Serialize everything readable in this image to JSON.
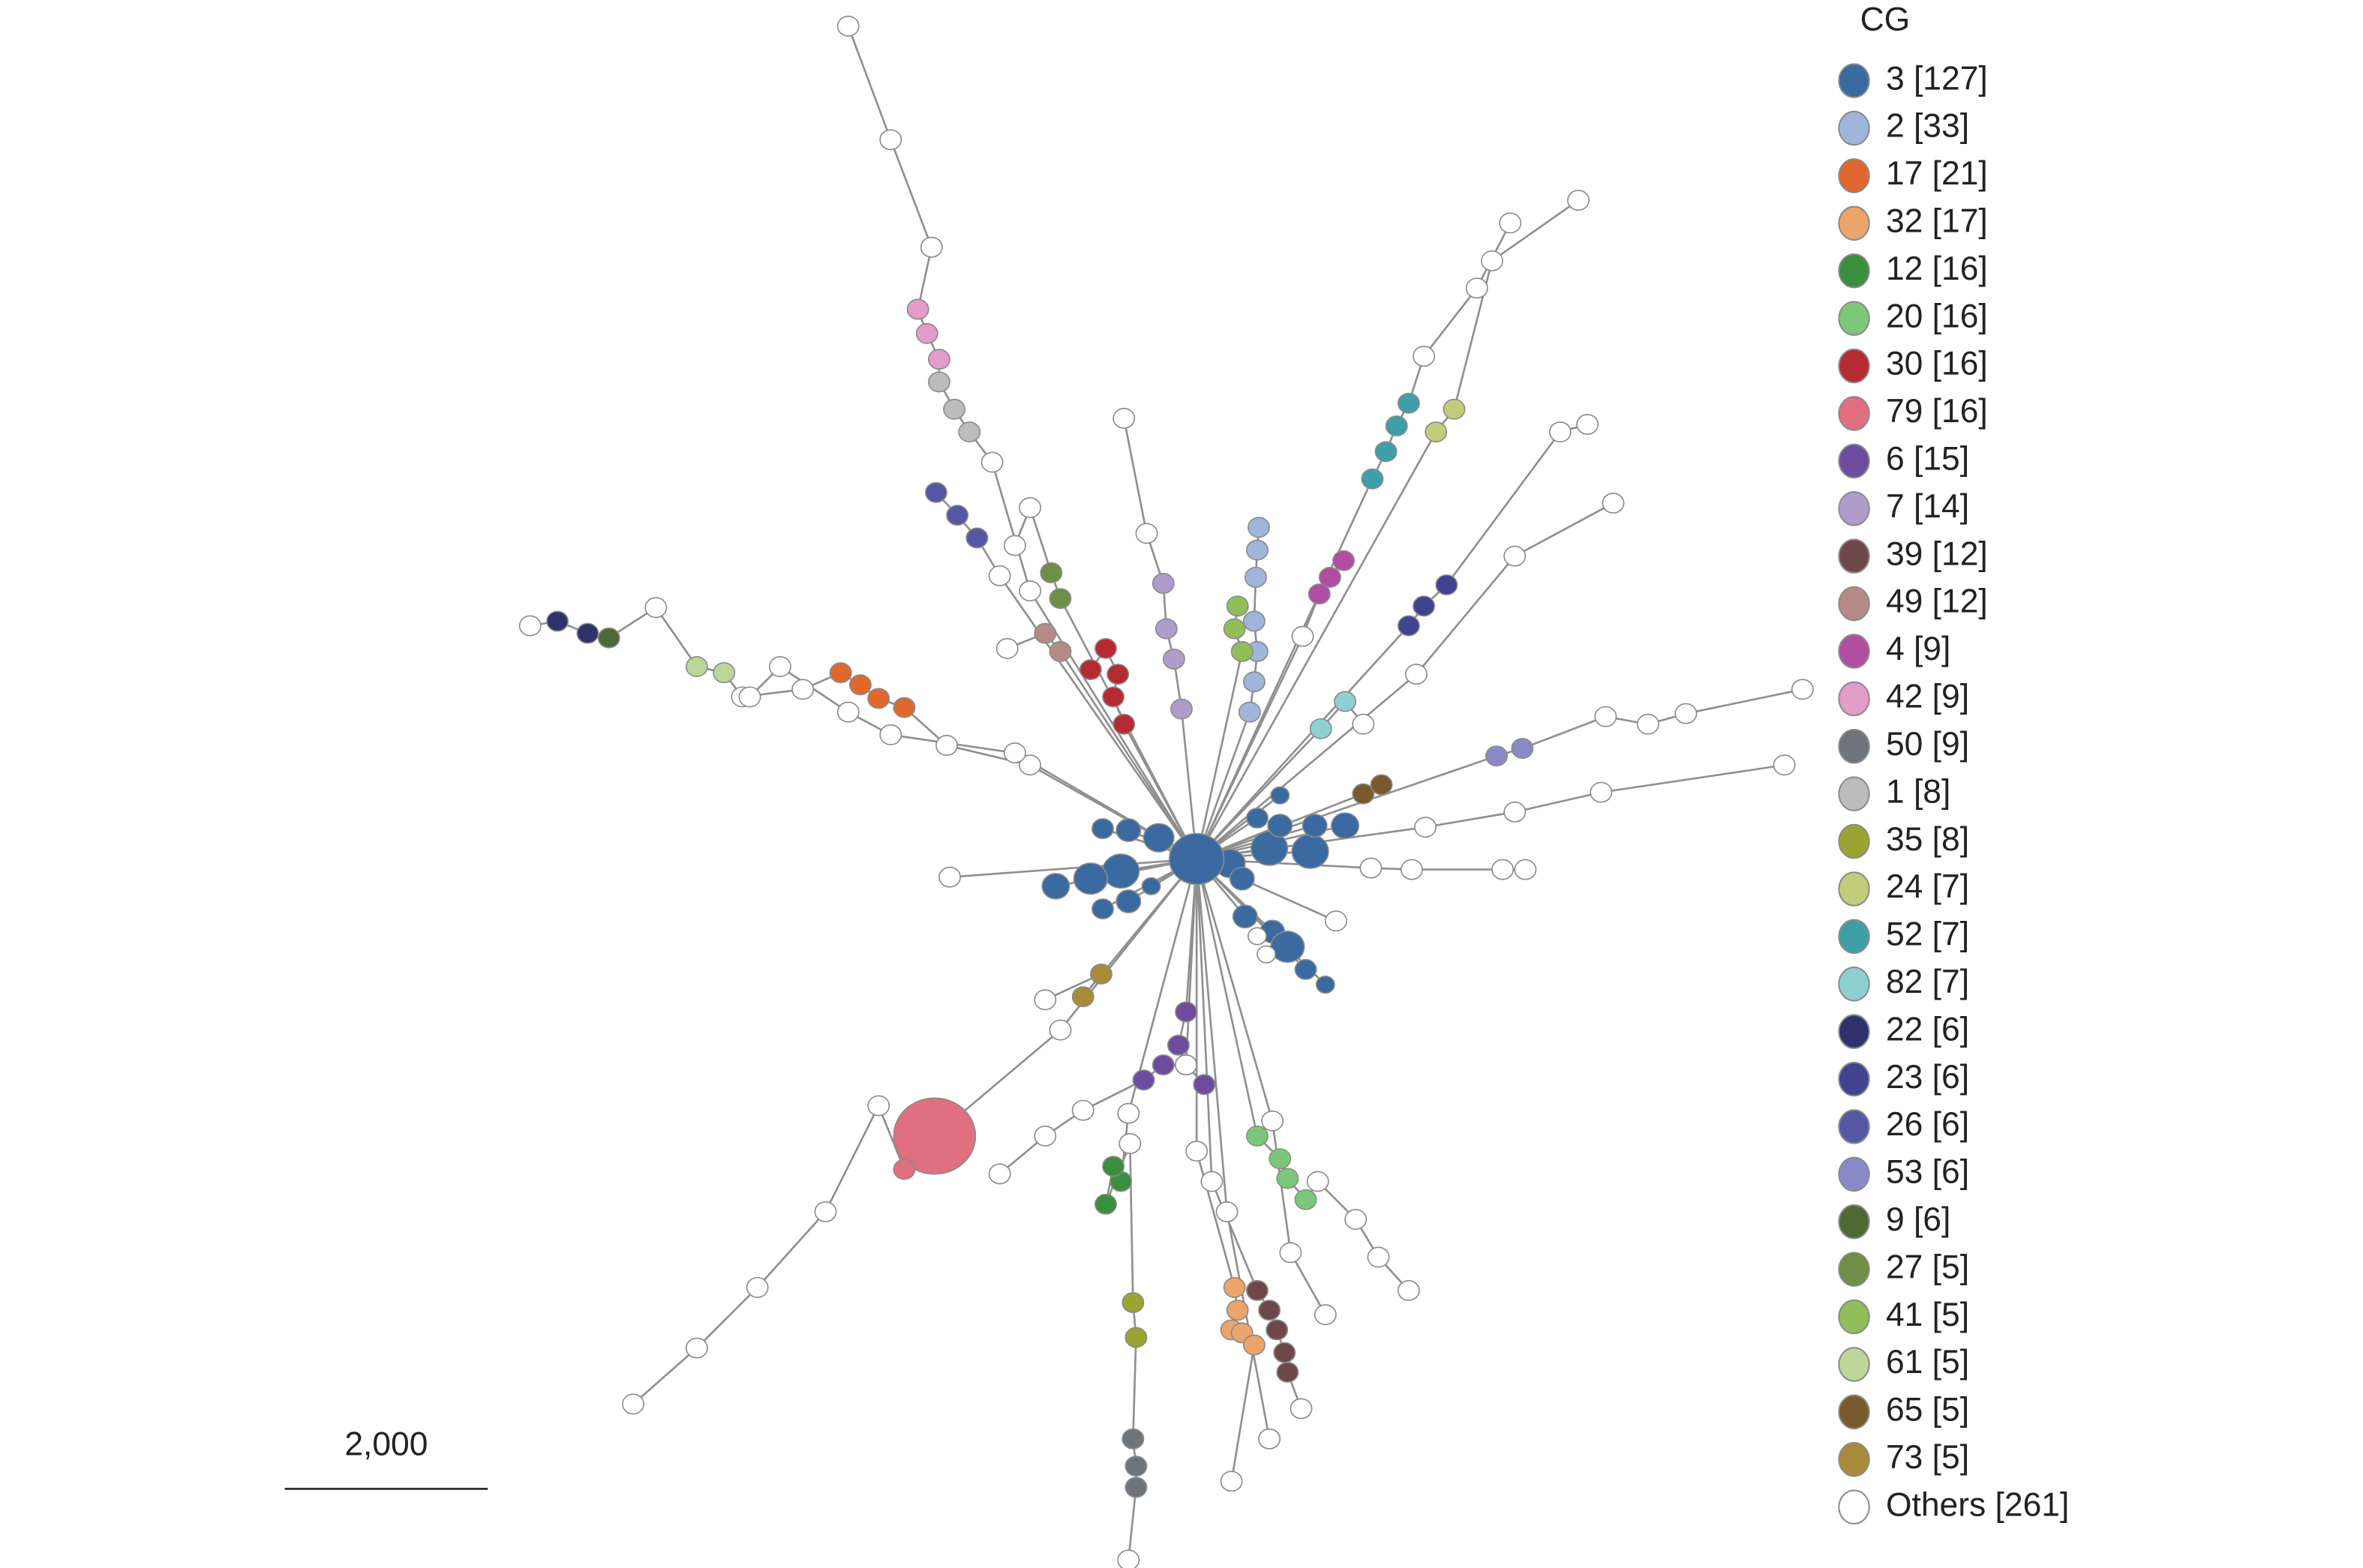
{
  "legend": {
    "title": "CG",
    "items": [
      {
        "label": "3 [127]",
        "color": "#3a6aa0"
      },
      {
        "label": "2 [33]",
        "color": "#9fb6da"
      },
      {
        "label": "17 [21]",
        "color": "#e0682c"
      },
      {
        "label": "32 [17]",
        "color": "#eca46a"
      },
      {
        "label": "12 [16]",
        "color": "#3a8f3e"
      },
      {
        "label": "20 [16]",
        "color": "#7cc87a"
      },
      {
        "label": "30 [16]",
        "color": "#b62b31"
      },
      {
        "label": "79 [16]",
        "color": "#e06f7f"
      },
      {
        "label": "6 [15]",
        "color": "#6d4c9f"
      },
      {
        "label": "7 [14]",
        "color": "#b09ccb"
      },
      {
        "label": "39 [12]",
        "color": "#6e4848"
      },
      {
        "label": "49 [12]",
        "color": "#b68a86"
      },
      {
        "label": "4 [9]",
        "color": "#b24ea2"
      },
      {
        "label": "42 [9]",
        "color": "#e49cc9"
      },
      {
        "label": "50 [9]",
        "color": "#6f747b"
      },
      {
        "label": "1 [8]",
        "color": "#bcbcbc"
      },
      {
        "label": "35 [8]",
        "color": "#99a530"
      },
      {
        "label": "24 [7]",
        "color": "#c3cc7a"
      },
      {
        "label": "52 [7]",
        "color": "#3f9fa8"
      },
      {
        "label": "82 [7]",
        "color": "#8fcfd0"
      },
      {
        "label": "22 [6]",
        "color": "#2f316d"
      },
      {
        "label": "23 [6]",
        "color": "#414290"
      },
      {
        "label": "26 [6]",
        "color": "#5458a4"
      },
      {
        "label": "53 [6]",
        "color": "#8989c7"
      },
      {
        "label": "9 [6]",
        "color": "#4d6a35"
      },
      {
        "label": "27 [5]",
        "color": "#6f8f48"
      },
      {
        "label": "41 [5]",
        "color": "#91be58"
      },
      {
        "label": "61 [5]",
        "color": "#bcd69a"
      },
      {
        "label": "65 [5]",
        "color": "#7a5a2a"
      },
      {
        "label": "73 [5]",
        "color": "#a88b3a"
      },
      {
        "label": "Others [261]",
        "color": "#ffffff"
      }
    ]
  },
  "scale_bar": {
    "label": "2,000"
  }
}
